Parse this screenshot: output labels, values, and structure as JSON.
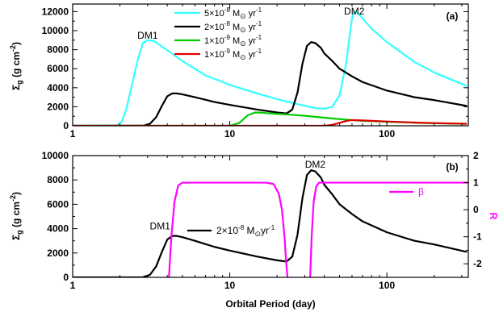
{
  "chart_data": [
    {
      "type": "line",
      "panel_tag": "(a)",
      "xscale": "log",
      "xlim": [
        1,
        330
      ],
      "ylim": [
        0,
        12800
      ],
      "ylabel_main": "Σ",
      "ylabel_sub": "g",
      "ylabel_unit": "(g cm",
      "ylabel_exp": "-2",
      "ylabel_close": ")",
      "xticks": [
        1,
        10,
        100
      ],
      "xtick_labels": [
        "1",
        "10",
        "100"
      ],
      "yticks": [
        0,
        2000,
        4000,
        6000,
        8000,
        10000,
        12000
      ],
      "ytick_labels": [
        "0",
        "2000",
        "4000",
        "6000",
        "8000",
        "10000",
        "12000"
      ],
      "legend_position": "top-center",
      "series": [
        {
          "name_coef": "5×10",
          "name_exp": "-8",
          "name_unit": " M",
          "name_sym": "⊙",
          "name_tail": " yr",
          "name_tail_exp": "-1",
          "color": "#33ffff",
          "x": [
            1,
            1.9,
            2.05,
            2.2,
            2.4,
            2.6,
            2.8,
            3.0,
            3.3,
            3.8,
            5,
            7,
            10,
            15,
            20,
            25,
            30,
            35,
            40,
            45,
            50,
            55,
            58,
            60,
            62,
            65,
            70,
            80,
            100,
            150,
            200,
            320
          ],
          "y": [
            0,
            30,
            400,
            1800,
            4500,
            7000,
            8700,
            9000,
            8900,
            8200,
            6800,
            5300,
            4300,
            3400,
            2800,
            2400,
            2100,
            1850,
            1800,
            2000,
            3200,
            6500,
            9500,
            11300,
            12000,
            11900,
            11300,
            10200,
            8800,
            6700,
            5600,
            4200
          ]
        },
        {
          "name_coef": "2×10",
          "name_exp": "-8",
          "name_unit": " M",
          "name_sym": "⊙",
          "name_tail": " yr",
          "name_tail_exp": "-1",
          "color": "#000000",
          "x": [
            1,
            2.8,
            3.1,
            3.4,
            3.7,
            4.0,
            4.3,
            4.6,
            5,
            6,
            8,
            10,
            15,
            20,
            23,
            25,
            27,
            29,
            31,
            33,
            35,
            38,
            40,
            45,
            50,
            60,
            70,
            100,
            150,
            200,
            320
          ],
          "y": [
            0,
            10,
            200,
            900,
            2100,
            3100,
            3400,
            3400,
            3300,
            3000,
            2500,
            2200,
            1700,
            1400,
            1300,
            1700,
            3500,
            6500,
            8400,
            8800,
            8700,
            8200,
            7600,
            6800,
            6000,
            5200,
            4600,
            3700,
            3000,
            2700,
            2100
          ]
        },
        {
          "name_coef": "1×10",
          "name_exp": "-9",
          "name_unit": " M",
          "name_sym": "⊙",
          "name_tail": " yr",
          "name_tail_exp": "-1",
          "color": "#00cc00",
          "x": [
            1,
            10,
            11.5,
            13,
            14.5,
            16,
            18,
            20,
            25,
            30,
            40,
            50,
            60,
            70,
            100,
            150,
            200,
            320
          ],
          "y": [
            0,
            0,
            300,
            1100,
            1400,
            1380,
            1300,
            1250,
            1150,
            1050,
            850,
            700,
            600,
            520,
            420,
            320,
            260,
            200
          ]
        },
        {
          "name_coef": "1×10",
          "name_exp": "-9",
          "name_unit": " M",
          "name_sym": "⊙",
          "name_tail": " yr",
          "name_tail_exp": "-1",
          "color": "#e00000",
          "x": [
            1,
            40,
            45,
            50,
            55,
            60,
            70,
            100,
            150,
            200,
            320
          ],
          "y": [
            0,
            0,
            100,
            300,
            500,
            600,
            560,
            450,
            340,
            280,
            210
          ]
        }
      ],
      "annotations": [
        {
          "text": "DM1",
          "x": 3.0,
          "y": 9150
        },
        {
          "text": "DM2",
          "x": 62,
          "y": 11700
        }
      ]
    },
    {
      "type": "line",
      "panel_tag": "(b)",
      "xscale": "log",
      "xlim": [
        1,
        330
      ],
      "ylim": [
        0,
        10000
      ],
      "y2lim": [
        -2.5,
        2
      ],
      "xlabel": "Orbital Period (day)",
      "ylabel_main": "Σ",
      "ylabel_sub": "g",
      "ylabel_unit": "(g cm",
      "ylabel_exp": "-2",
      "ylabel_close": ")",
      "y2label": "R",
      "xticks": [
        1,
        10,
        100
      ],
      "xtick_labels": [
        "1",
        "10",
        "100"
      ],
      "yticks": [
        0,
        2000,
        4000,
        6000,
        8000,
        10000
      ],
      "ytick_labels": [
        "0",
        "2000",
        "4000",
        "6000",
        "8000",
        "10000"
      ],
      "y2ticks": [
        -2,
        -1,
        0,
        1,
        2
      ],
      "y2tick_labels": [
        "-2",
        "-1",
        "0",
        "1",
        "2"
      ],
      "series": [
        {
          "name_coef": "2×10",
          "name_exp": "-8",
          "name_unit": " M",
          "name_sym": "⊙",
          "name_tail": "yr",
          "name_tail_exp": "-1",
          "color": "#000000",
          "axis": "left",
          "x": [
            1,
            2.8,
            3.1,
            3.4,
            3.7,
            4.0,
            4.3,
            4.6,
            5,
            6,
            8,
            10,
            15,
            20,
            23,
            25,
            27,
            29,
            31,
            33,
            35,
            38,
            40,
            45,
            50,
            60,
            70,
            100,
            150,
            200,
            320
          ],
          "y": [
            0,
            10,
            200,
            900,
            2100,
            3100,
            3400,
            3400,
            3300,
            3000,
            2500,
            2200,
            1700,
            1400,
            1300,
            1700,
            3500,
            6500,
            8400,
            8800,
            8700,
            8200,
            7600,
            6800,
            6000,
            5200,
            4600,
            3700,
            3000,
            2700,
            2100
          ]
        },
        {
          "name": "β",
          "color": "#ff00ff",
          "axis": "right",
          "x": [
            4.1,
            4.25,
            4.45,
            4.7,
            5.0,
            5.5,
            17,
            19,
            20.5,
            21.5,
            22.3,
            22.9,
            23.3
          ],
          "y": [
            -2.5,
            -1.0,
            0.3,
            0.9,
            1.0,
            1.0,
            1.0,
            0.95,
            0.6,
            0.0,
            -1.0,
            -2.0,
            -2.5
          ]
        },
        {
          "name": "",
          "color": "#ff00ff",
          "axis": "right",
          "x": [
            32.5,
            33.2,
            34.2,
            35.5,
            37,
            40,
            60,
            100,
            330
          ],
          "y": [
            -2.5,
            -1.0,
            0.3,
            0.85,
            1.0,
            1.0,
            1.0,
            1.0,
            1.0
          ]
        }
      ],
      "annotations": [
        {
          "text": "DM1",
          "x": 3.6,
          "y": 3950
        },
        {
          "text": "DM2",
          "x": 35,
          "y": 9000
        }
      ]
    }
  ]
}
